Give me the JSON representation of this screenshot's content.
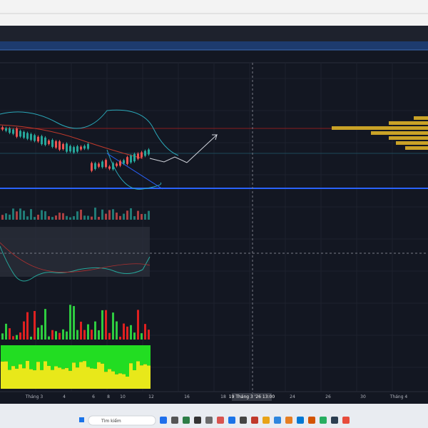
{
  "window": {
    "search_placeholder": "Tìm kiếm"
  },
  "axis": {
    "labels": [
      "Tháng 3",
      "4",
      "6",
      "8",
      "10",
      "12",
      "16",
      "18",
      "24",
      "26",
      "30",
      "Tháng 4"
    ],
    "crosshair_label": "19 Tháng 3 '26  13:00"
  }
}
